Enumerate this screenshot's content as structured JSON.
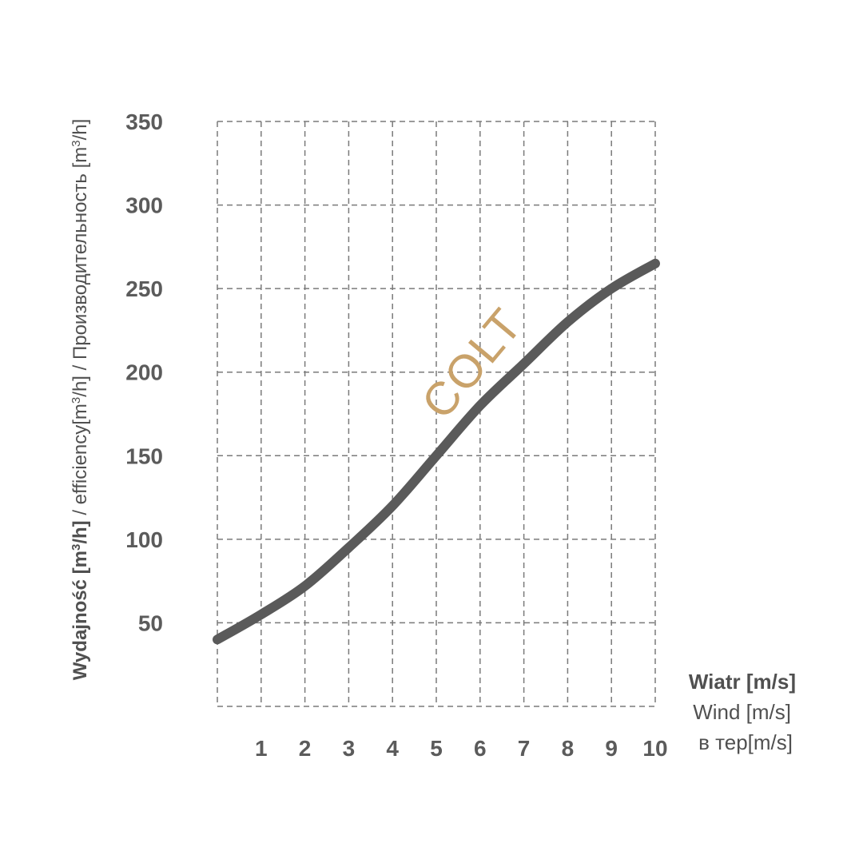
{
  "chart_data": {
    "type": "line",
    "x": [
      0,
      1,
      2,
      3,
      4,
      5,
      6,
      7,
      8,
      9,
      10
    ],
    "series": [
      {
        "values": [
          40,
          55,
          72,
          95,
          120,
          150,
          180,
          205,
          230,
          250,
          265
        ]
      }
    ],
    "xticks": [
      "1",
      "2",
      "3",
      "4",
      "5",
      "6",
      "7",
      "8",
      "9",
      "10"
    ],
    "yticks": [
      "50",
      "100",
      "150",
      "200",
      "250",
      "300",
      "350"
    ],
    "xlim": [
      0,
      10
    ],
    "ylim": [
      0,
      350
    ],
    "grid": true,
    "colors": {
      "line": "#5a5a5a",
      "grid": "#7a7a7a",
      "watermark": "#c9a26a"
    },
    "ylabel": {
      "part1": "Wydajność [m",
      "sup1": "3",
      "part2": "/h]",
      "part3": " / efficiency[m",
      "sup2": "3",
      "part4": "/h] / Производительность  [m",
      "sup3": "3",
      "part5": "/h]"
    },
    "xlabel": {
      "line1": "Wiatr [m/s]",
      "line2": "Wind [m/s]",
      "line3": "в тер[m/s]"
    },
    "watermark": "COLT"
  }
}
